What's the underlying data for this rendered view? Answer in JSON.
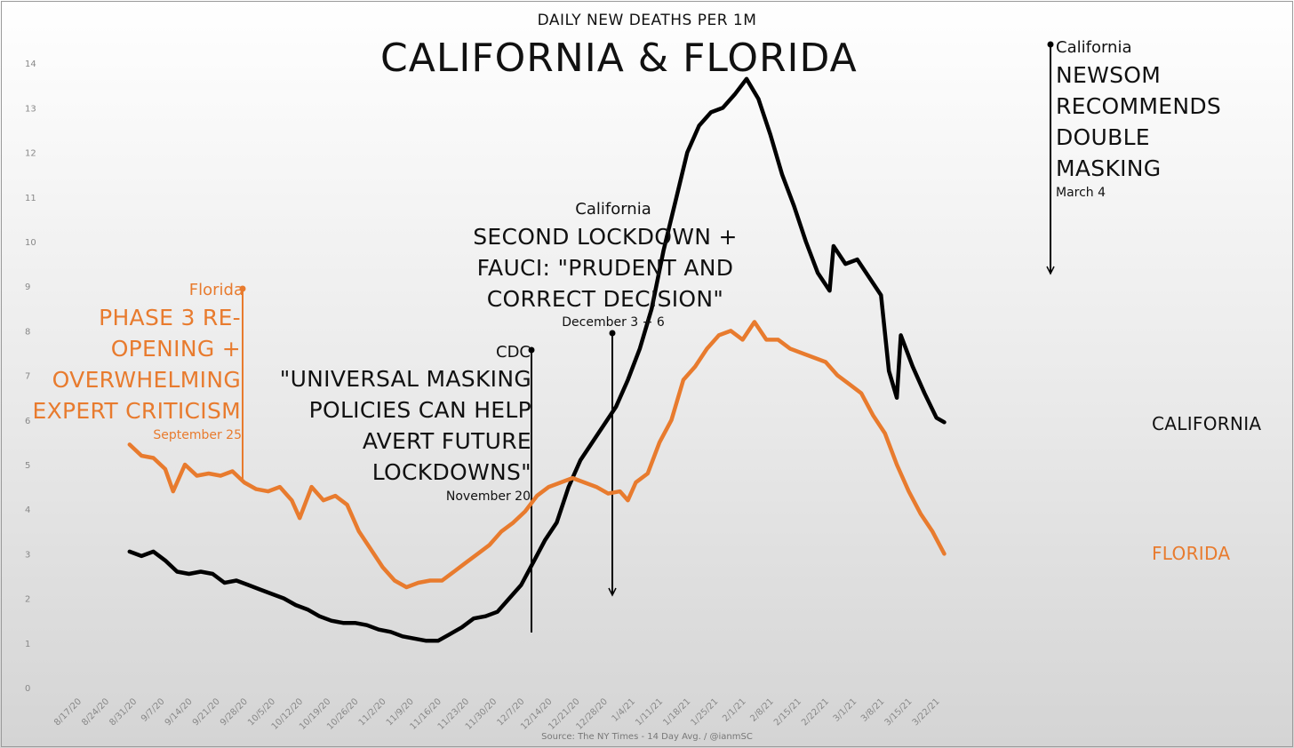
{
  "subtitle": "DAILY NEW DEATHS PER 1M",
  "title": "CALIFORNIA & FLORIDA",
  "source": "Source: The NY Times - 14 Day Avg. / @ianmSC",
  "colors": {
    "california": "#000000",
    "florida": "#e87b2e"
  },
  "annotations": {
    "florida_phase3": {
      "state": "Florida",
      "lines": [
        "PHASE 3 RE-",
        "OPENING +",
        "OVERWHELMING",
        "EXPERT CRITICISM"
      ],
      "date": "September 25"
    },
    "cdc": {
      "state": "CDC",
      "lines": [
        "\"UNIVERSAL MASKING",
        "POLICIES CAN HELP",
        "AVERT FUTURE",
        "LOCKDOWNS\""
      ],
      "date": "November 20"
    },
    "lockdown": {
      "state": "California",
      "lines": [
        "SECOND LOCKDOWN +",
        "FAUCI: \"PRUDENT AND",
        "CORRECT DECISION\""
      ],
      "date": "December 3 + 6"
    },
    "newsom": {
      "state": "California",
      "lines": [
        "NEWSOM",
        "RECOMMENDS",
        "DOUBLE",
        "MASKING"
      ],
      "date": "March 4"
    }
  },
  "chart_data": {
    "type": "line",
    "title": "CALIFORNIA & FLORIDA",
    "subtitle": "DAILY NEW DEATHS PER 1M",
    "xlabel": "",
    "ylabel": "",
    "ylim": [
      0,
      14
    ],
    "yticks": [
      "0",
      "1",
      "2",
      "3",
      "4",
      "5",
      "6",
      "7",
      "8",
      "9",
      "10",
      "11",
      "12",
      "13",
      "14"
    ],
    "grid": false,
    "legend": "series labels at right end of lines",
    "x_ticks": [
      "8/17/20",
      "8/24/20",
      "8/31/20",
      "9/7/20",
      "9/14/20",
      "9/21/20",
      "9/28/20",
      "10/5/20",
      "10/12/20",
      "10/19/20",
      "10/26/20",
      "11/2/20",
      "11/9/20",
      "11/16/20",
      "11/23/20",
      "11/30/20",
      "12/7/20",
      "12/14/20",
      "12/21/20",
      "12/28/20",
      "1/4/21",
      "1/11/21",
      "1/18/21",
      "1/25/21",
      "2/1/21",
      "2/8/21",
      "2/15/21",
      "2/22/21",
      "3/1/21",
      "3/8/21",
      "3/15/21",
      "3/22/21"
    ],
    "series": [
      {
        "name": "CALIFORNIA",
        "color": "#000000",
        "points": [
          [
            "8/30/20",
            3.05
          ],
          [
            "9/2/20",
            2.95
          ],
          [
            "9/5/20",
            3.05
          ],
          [
            "9/8/20",
            2.85
          ],
          [
            "9/11/20",
            2.6
          ],
          [
            "9/14/20",
            2.55
          ],
          [
            "9/17/20",
            2.6
          ],
          [
            "9/20/20",
            2.55
          ],
          [
            "9/23/20",
            2.35
          ],
          [
            "9/26/20",
            2.4
          ],
          [
            "9/29/20",
            2.3
          ],
          [
            "10/2/20",
            2.2
          ],
          [
            "10/5/20",
            2.1
          ],
          [
            "10/8/20",
            2.0
          ],
          [
            "10/11/20",
            1.85
          ],
          [
            "10/14/20",
            1.75
          ],
          [
            "10/17/20",
            1.6
          ],
          [
            "10/20/20",
            1.5
          ],
          [
            "10/23/20",
            1.45
          ],
          [
            "10/26/20",
            1.45
          ],
          [
            "10/29/20",
            1.4
          ],
          [
            "11/1/20",
            1.3
          ],
          [
            "11/4/20",
            1.25
          ],
          [
            "11/7/20",
            1.15
          ],
          [
            "11/10/20",
            1.1
          ],
          [
            "11/13/20",
            1.05
          ],
          [
            "11/16/20",
            1.05
          ],
          [
            "11/19/20",
            1.2
          ],
          [
            "11/22/20",
            1.35
          ],
          [
            "11/25/20",
            1.55
          ],
          [
            "11/28/20",
            1.6
          ],
          [
            "12/1/20",
            1.7
          ],
          [
            "12/4/20",
            2.0
          ],
          [
            "12/7/20",
            2.3
          ],
          [
            "12/10/20",
            2.8
          ],
          [
            "12/13/20",
            3.3
          ],
          [
            "12/16/20",
            3.7
          ],
          [
            "12/19/20",
            4.5
          ],
          [
            "12/22/20",
            5.1
          ],
          [
            "12/25/20",
            5.5
          ],
          [
            "12/28/20",
            5.9
          ],
          [
            "12/31/20",
            6.3
          ],
          [
            "1/3/21",
            6.9
          ],
          [
            "1/6/21",
            7.6
          ],
          [
            "1/9/21",
            8.5
          ],
          [
            "1/12/21",
            9.8
          ],
          [
            "1/15/21",
            10.9
          ],
          [
            "1/18/21",
            12.0
          ],
          [
            "1/21/21",
            12.6
          ],
          [
            "1/24/21",
            12.9
          ],
          [
            "1/27/21",
            13.0
          ],
          [
            "1/30/21",
            13.3
          ],
          [
            "2/2/21",
            13.65
          ],
          [
            "2/5/21",
            13.2
          ],
          [
            "2/8/21",
            12.4
          ],
          [
            "2/11/21",
            11.5
          ],
          [
            "2/14/21",
            10.8
          ],
          [
            "2/17/21",
            10.0
          ],
          [
            "2/20/21",
            9.3
          ],
          [
            "2/23/21",
            8.9
          ],
          [
            "2/24/21",
            9.9
          ],
          [
            "2/27/21",
            9.5
          ],
          [
            "3/2/21",
            9.6
          ],
          [
            "3/5/21",
            9.2
          ],
          [
            "3/8/21",
            8.8
          ],
          [
            "3/10/21",
            7.1
          ],
          [
            "3/12/21",
            6.5
          ],
          [
            "3/13/21",
            7.9
          ],
          [
            "3/16/21",
            7.2
          ],
          [
            "3/19/21",
            6.6
          ],
          [
            "3/22/21",
            6.05
          ],
          [
            "3/24/21",
            5.95
          ]
        ]
      },
      {
        "name": "FLORIDA",
        "color": "#e87b2e",
        "points": [
          [
            "8/30/20",
            5.45
          ],
          [
            "9/2/20",
            5.2
          ],
          [
            "9/5/20",
            5.15
          ],
          [
            "9/8/20",
            4.9
          ],
          [
            "9/10/20",
            4.4
          ],
          [
            "9/13/20",
            5.0
          ],
          [
            "9/16/20",
            4.75
          ],
          [
            "9/19/20",
            4.8
          ],
          [
            "9/22/20",
            4.75
          ],
          [
            "9/25/20",
            4.85
          ],
          [
            "9/28/20",
            4.6
          ],
          [
            "10/1/20",
            4.45
          ],
          [
            "10/4/20",
            4.4
          ],
          [
            "10/7/20",
            4.5
          ],
          [
            "10/10/20",
            4.2
          ],
          [
            "10/12/20",
            3.8
          ],
          [
            "10/15/20",
            4.5
          ],
          [
            "10/18/20",
            4.2
          ],
          [
            "10/21/20",
            4.3
          ],
          [
            "10/24/20",
            4.1
          ],
          [
            "10/27/20",
            3.5
          ],
          [
            "10/30/20",
            3.1
          ],
          [
            "11/2/20",
            2.7
          ],
          [
            "11/5/20",
            2.4
          ],
          [
            "11/8/20",
            2.25
          ],
          [
            "11/11/20",
            2.35
          ],
          [
            "11/14/20",
            2.4
          ],
          [
            "11/17/20",
            2.4
          ],
          [
            "11/20/20",
            2.6
          ],
          [
            "11/23/20",
            2.8
          ],
          [
            "11/26/20",
            3.0
          ],
          [
            "11/29/20",
            3.2
          ],
          [
            "12/2/20",
            3.5
          ],
          [
            "12/5/20",
            3.7
          ],
          [
            "12/8/20",
            3.95
          ],
          [
            "12/11/20",
            4.3
          ],
          [
            "12/14/20",
            4.5
          ],
          [
            "12/17/20",
            4.6
          ],
          [
            "12/20/20",
            4.7
          ],
          [
            "12/23/20",
            4.6
          ],
          [
            "12/26/20",
            4.5
          ],
          [
            "12/29/20",
            4.35
          ],
          [
            "1/1/21",
            4.4
          ],
          [
            "1/3/21",
            4.2
          ],
          [
            "1/5/21",
            4.6
          ],
          [
            "1/8/21",
            4.8
          ],
          [
            "1/11/21",
            5.5
          ],
          [
            "1/14/21",
            6.0
          ],
          [
            "1/17/21",
            6.9
          ],
          [
            "1/20/21",
            7.2
          ],
          [
            "1/23/21",
            7.6
          ],
          [
            "1/26/21",
            7.9
          ],
          [
            "1/29/21",
            8.0
          ],
          [
            "2/1/21",
            7.8
          ],
          [
            "2/4/21",
            8.2
          ],
          [
            "2/7/21",
            7.8
          ],
          [
            "2/10/21",
            7.8
          ],
          [
            "2/13/21",
            7.6
          ],
          [
            "2/16/21",
            7.5
          ],
          [
            "2/19/21",
            7.4
          ],
          [
            "2/22/21",
            7.3
          ],
          [
            "2/25/21",
            7.0
          ],
          [
            "2/28/21",
            6.8
          ],
          [
            "3/3/21",
            6.6
          ],
          [
            "3/6/21",
            6.1
          ],
          [
            "3/9/21",
            5.7
          ],
          [
            "3/12/21",
            5.0
          ],
          [
            "3/15/21",
            4.4
          ],
          [
            "3/18/21",
            3.9
          ],
          [
            "3/21/21",
            3.5
          ],
          [
            "3/24/21",
            3.0
          ]
        ]
      }
    ]
  }
}
